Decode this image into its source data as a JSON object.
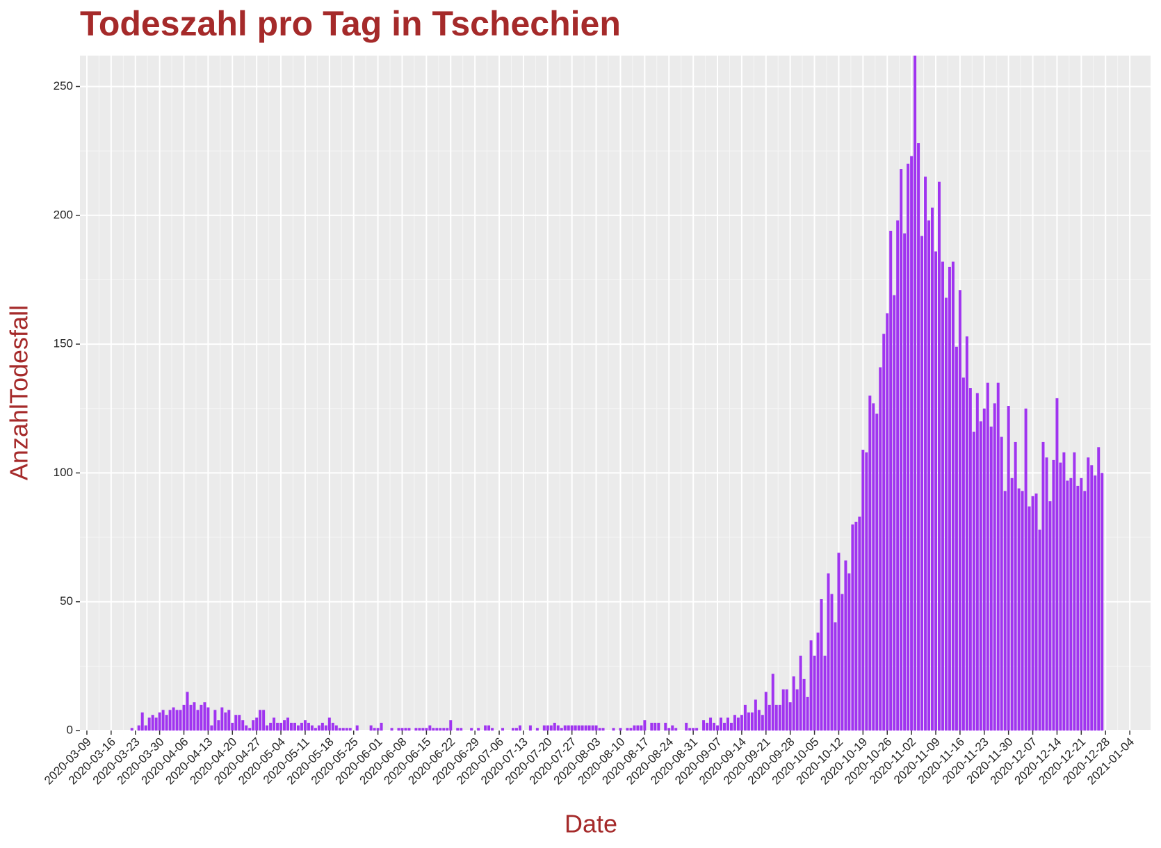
{
  "chart_data": {
    "type": "bar",
    "title": "Todeszahl pro Tag in Tschechien",
    "xlabel": "Date",
    "ylabel": "AnzahlTodesfall",
    "color": "#a034f0",
    "grid": true,
    "x": [
      "2020-03-22",
      "2020-03-23",
      "2020-03-24",
      "2020-03-25",
      "2020-03-26",
      "2020-03-27",
      "2020-03-28",
      "2020-03-29",
      "2020-03-30",
      "2020-03-31",
      "2020-04-01",
      "2020-04-02",
      "2020-04-03",
      "2020-04-04",
      "2020-04-05",
      "2020-04-06",
      "2020-04-07",
      "2020-04-08",
      "2020-04-09",
      "2020-04-10",
      "2020-04-11",
      "2020-04-12",
      "2020-04-13",
      "2020-04-14",
      "2020-04-15",
      "2020-04-16",
      "2020-04-17",
      "2020-04-18",
      "2020-04-19",
      "2020-04-20",
      "2020-04-21",
      "2020-04-22",
      "2020-04-23",
      "2020-04-24",
      "2020-04-25",
      "2020-04-26",
      "2020-04-27",
      "2020-04-28",
      "2020-04-29",
      "2020-04-30",
      "2020-05-01",
      "2020-05-02",
      "2020-05-03",
      "2020-05-04",
      "2020-05-05",
      "2020-05-06",
      "2020-05-07",
      "2020-05-08",
      "2020-05-09",
      "2020-05-10",
      "2020-05-11",
      "2020-05-12",
      "2020-05-13",
      "2020-05-14",
      "2020-05-15",
      "2020-05-16",
      "2020-05-17",
      "2020-05-18",
      "2020-05-19",
      "2020-05-20",
      "2020-05-21",
      "2020-05-22",
      "2020-05-23",
      "2020-05-24",
      "2020-05-25",
      "2020-05-26",
      "2020-05-27",
      "2020-05-28",
      "2020-05-29",
      "2020-05-30",
      "2020-05-31",
      "2020-06-01",
      "2020-06-02",
      "2020-06-03",
      "2020-06-04",
      "2020-06-05",
      "2020-06-06",
      "2020-06-07",
      "2020-06-08",
      "2020-06-09",
      "2020-06-10",
      "2020-06-11",
      "2020-06-12",
      "2020-06-13",
      "2020-06-14",
      "2020-06-15",
      "2020-06-16",
      "2020-06-17",
      "2020-06-18",
      "2020-06-19",
      "2020-06-20",
      "2020-06-21",
      "2020-06-22",
      "2020-06-23",
      "2020-06-24",
      "2020-06-25",
      "2020-06-26",
      "2020-06-27",
      "2020-06-28",
      "2020-06-29",
      "2020-06-30",
      "2020-07-01",
      "2020-07-02",
      "2020-07-03",
      "2020-07-04",
      "2020-07-05",
      "2020-07-06",
      "2020-07-07",
      "2020-07-08",
      "2020-07-09",
      "2020-07-10",
      "2020-07-11",
      "2020-07-12",
      "2020-07-13",
      "2020-07-14",
      "2020-07-15",
      "2020-07-16",
      "2020-07-17",
      "2020-07-18",
      "2020-07-19",
      "2020-07-20",
      "2020-07-21",
      "2020-07-22",
      "2020-07-23",
      "2020-07-24",
      "2020-07-25",
      "2020-07-26",
      "2020-07-27",
      "2020-07-28",
      "2020-07-29",
      "2020-07-30",
      "2020-07-31",
      "2020-08-01",
      "2020-08-02",
      "2020-08-03",
      "2020-08-04",
      "2020-08-05",
      "2020-08-06",
      "2020-08-07",
      "2020-08-08",
      "2020-08-09",
      "2020-08-10",
      "2020-08-11",
      "2020-08-12",
      "2020-08-13",
      "2020-08-14",
      "2020-08-15",
      "2020-08-16",
      "2020-08-17",
      "2020-08-18",
      "2020-08-19",
      "2020-08-20",
      "2020-08-21",
      "2020-08-22",
      "2020-08-23",
      "2020-08-24",
      "2020-08-25",
      "2020-08-26",
      "2020-08-27",
      "2020-08-28",
      "2020-08-29",
      "2020-08-30",
      "2020-08-31",
      "2020-09-01",
      "2020-09-02",
      "2020-09-03",
      "2020-09-04",
      "2020-09-05",
      "2020-09-06",
      "2020-09-07",
      "2020-09-08",
      "2020-09-09",
      "2020-09-10",
      "2020-09-11",
      "2020-09-12",
      "2020-09-13",
      "2020-09-14",
      "2020-09-15",
      "2020-09-16",
      "2020-09-17",
      "2020-09-18",
      "2020-09-19",
      "2020-09-20",
      "2020-09-21",
      "2020-09-22",
      "2020-09-23",
      "2020-09-24",
      "2020-09-25",
      "2020-09-26",
      "2020-09-27",
      "2020-09-28",
      "2020-09-29",
      "2020-09-30",
      "2020-10-01",
      "2020-10-02",
      "2020-10-03",
      "2020-10-04",
      "2020-10-05",
      "2020-10-06",
      "2020-10-07",
      "2020-10-08",
      "2020-10-09",
      "2020-10-10",
      "2020-10-11",
      "2020-10-12",
      "2020-10-13",
      "2020-10-14",
      "2020-10-15",
      "2020-10-16",
      "2020-10-17",
      "2020-10-18",
      "2020-10-19",
      "2020-10-20",
      "2020-10-21",
      "2020-10-22",
      "2020-10-23",
      "2020-10-24",
      "2020-10-25",
      "2020-10-26",
      "2020-10-27",
      "2020-10-28",
      "2020-10-29",
      "2020-10-30",
      "2020-10-31",
      "2020-11-01",
      "2020-11-02",
      "2020-11-03",
      "2020-11-04",
      "2020-11-05",
      "2020-11-06",
      "2020-11-07",
      "2020-11-08",
      "2020-11-09",
      "2020-11-10",
      "2020-11-11",
      "2020-11-12",
      "2020-11-13",
      "2020-11-14",
      "2020-11-15",
      "2020-11-16",
      "2020-11-17",
      "2020-11-18",
      "2020-11-19",
      "2020-11-20",
      "2020-11-21",
      "2020-11-22",
      "2020-11-23",
      "2020-11-24",
      "2020-11-25",
      "2020-11-26",
      "2020-11-27",
      "2020-11-28",
      "2020-11-29",
      "2020-11-30",
      "2020-12-01",
      "2020-12-02",
      "2020-12-03",
      "2020-12-04",
      "2020-12-05",
      "2020-12-06",
      "2020-12-07",
      "2020-12-08",
      "2020-12-09",
      "2020-12-10",
      "2020-12-11",
      "2020-12-12",
      "2020-12-13",
      "2020-12-14",
      "2020-12-15",
      "2020-12-16",
      "2020-12-17",
      "2020-12-18",
      "2020-12-19",
      "2020-12-20",
      "2020-12-21",
      "2020-12-22",
      "2020-12-23",
      "2020-12-24",
      "2020-12-25",
      "2020-12-26",
      "2020-12-27"
    ],
    "values": [
      1,
      0,
      2,
      7,
      2,
      5,
      6,
      5,
      7,
      8,
      6,
      8,
      9,
      8,
      8,
      10,
      15,
      10,
      11,
      8,
      10,
      11,
      9,
      2,
      8,
      4,
      9,
      7,
      8,
      3,
      6,
      6,
      4,
      2,
      1,
      4,
      5,
      8,
      8,
      2,
      3,
      5,
      3,
      3,
      4,
      5,
      3,
      3,
      2,
      3,
      4,
      3,
      2,
      1,
      2,
      3,
      2,
      5,
      3,
      2,
      1,
      1,
      1,
      1,
      0,
      2,
      0,
      0,
      0,
      2,
      1,
      1,
      3,
      0,
      0,
      1,
      0,
      1,
      1,
      1,
      1,
      0,
      1,
      1,
      1,
      1,
      2,
      1,
      1,
      1,
      1,
      1,
      4,
      0,
      1,
      1,
      0,
      0,
      1,
      0,
      1,
      0,
      2,
      2,
      1,
      0,
      0,
      1,
      0,
      0,
      1,
      1,
      2,
      0,
      0,
      2,
      0,
      1,
      0,
      2,
      2,
      2,
      3,
      2,
      1,
      2,
      2,
      2,
      2,
      2,
      2,
      2,
      2,
      2,
      2,
      1,
      1,
      0,
      0,
      1,
      0,
      1,
      0,
      1,
      1,
      2,
      2,
      2,
      4,
      0,
      3,
      3,
      3,
      0,
      3,
      1,
      2,
      1,
      0,
      0,
      3,
      1,
      1,
      1,
      0,
      4,
      3,
      5,
      3,
      2,
      5,
      3,
      5,
      3,
      6,
      5,
      6,
      10,
      7,
      7,
      12,
      8,
      6,
      15,
      10,
      22,
      10,
      10,
      16,
      16,
      11,
      21,
      16,
      29,
      20,
      13,
      35,
      29,
      38,
      51,
      29,
      61,
      53,
      42,
      69,
      53,
      66,
      61,
      80,
      81,
      83,
      109,
      108,
      130,
      127,
      123,
      141,
      154,
      162,
      194,
      169,
      198,
      218,
      193,
      220,
      223,
      262,
      228,
      192,
      215,
      198,
      203,
      186,
      213,
      182,
      168,
      180,
      182,
      149,
      171,
      137,
      153,
      133,
      116,
      131,
      120,
      125,
      135,
      118,
      127,
      135,
      114,
      93,
      126,
      98,
      112,
      94,
      93,
      125,
      87,
      91,
      92,
      78,
      112,
      106,
      89,
      105,
      129,
      104,
      108,
      97,
      98,
      108,
      95,
      98,
      93,
      106,
      103,
      99,
      110,
      100
    ],
    "xlim": [
      "2020-03-07",
      "2021-01-10"
    ],
    "xticks": [
      "2020-03-09",
      "2020-03-16",
      "2020-03-23",
      "2020-03-30",
      "2020-04-06",
      "2020-04-13",
      "2020-04-20",
      "2020-04-27",
      "2020-05-04",
      "2020-05-11",
      "2020-05-18",
      "2020-05-25",
      "2020-06-01",
      "2020-06-08",
      "2020-06-15",
      "2020-06-22",
      "2020-06-29",
      "2020-07-06",
      "2020-07-13",
      "2020-07-20",
      "2020-07-27",
      "2020-08-03",
      "2020-08-10",
      "2020-08-17",
      "2020-08-24",
      "2020-08-31",
      "2020-09-07",
      "2020-09-14",
      "2020-09-21",
      "2020-09-28",
      "2020-10-05",
      "2020-10-12",
      "2020-10-19",
      "2020-10-26",
      "2020-11-02",
      "2020-11-09",
      "2020-11-16",
      "2020-11-23",
      "2020-11-30",
      "2020-12-07",
      "2020-12-14",
      "2020-12-21",
      "2020-12-28",
      "2021-01-04"
    ],
    "ylim": [
      0,
      262
    ],
    "yticks": [
      0,
      50,
      100,
      150,
      200,
      250
    ]
  }
}
